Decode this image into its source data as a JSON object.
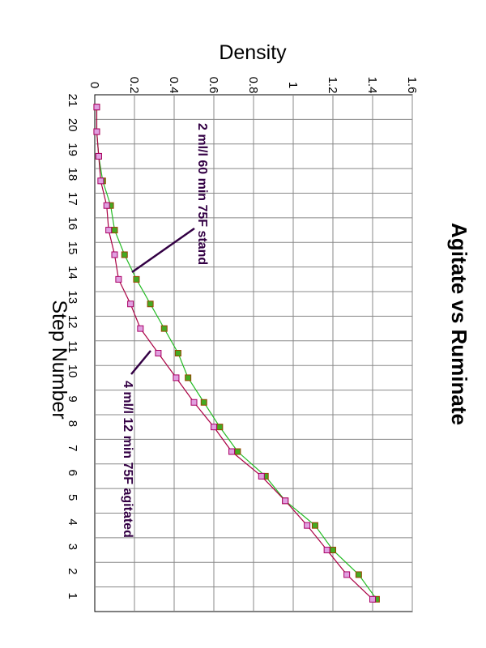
{
  "chart_data": {
    "type": "line",
    "title": "Agitate vs Ruminate",
    "xlabel": "Step Number",
    "ylabel": "Density",
    "categories": [
      "21",
      "20",
      "19",
      "18",
      "17",
      "16",
      "15",
      "14",
      "13",
      "12",
      "11",
      "10",
      "9",
      "8",
      "7",
      "6",
      "5",
      "4",
      "3",
      "2",
      "1"
    ],
    "ylim": [
      0,
      1.6
    ],
    "yticks": [
      "0",
      "0.2",
      "0.4",
      "0.6",
      "0.8",
      "1",
      "1.2",
      "1.4",
      "1.6"
    ],
    "yticks_values": [
      0,
      0.2,
      0.4,
      0.6,
      0.8,
      1.0,
      1.2,
      1.4,
      1.6
    ],
    "grid": true,
    "orientation": "rotated 90° clockwise",
    "series": [
      {
        "name": "2 ml/l 60 min 75F stand",
        "color": "#22bb22",
        "marker_fill": "#44aa22",
        "marker_edge": "#994400",
        "values": [
          0.01,
          0.01,
          0.02,
          0.04,
          0.08,
          0.1,
          0.15,
          0.21,
          0.28,
          0.35,
          0.42,
          0.47,
          0.55,
          0.63,
          0.72,
          0.86,
          0.96,
          1.11,
          1.2,
          1.33,
          1.42
        ]
      },
      {
        "name": "4 ml/l 12 min 75F agitated",
        "color": "#aa0044",
        "marker_fill": "#e0a0e0",
        "marker_edge": "#aa0066",
        "values": [
          0.01,
          0.01,
          0.02,
          0.03,
          0.06,
          0.07,
          0.1,
          0.12,
          0.18,
          0.23,
          0.32,
          0.41,
          0.5,
          0.6,
          0.69,
          0.84,
          0.96,
          1.07,
          1.17,
          1.27,
          1.4
        ]
      }
    ],
    "annotations": [
      {
        "text": "2 ml/l 60 min 75F stand",
        "color": "#330044"
      },
      {
        "text": "4 ml/l 12 min 75F agitated",
        "color": "#330044"
      }
    ]
  }
}
